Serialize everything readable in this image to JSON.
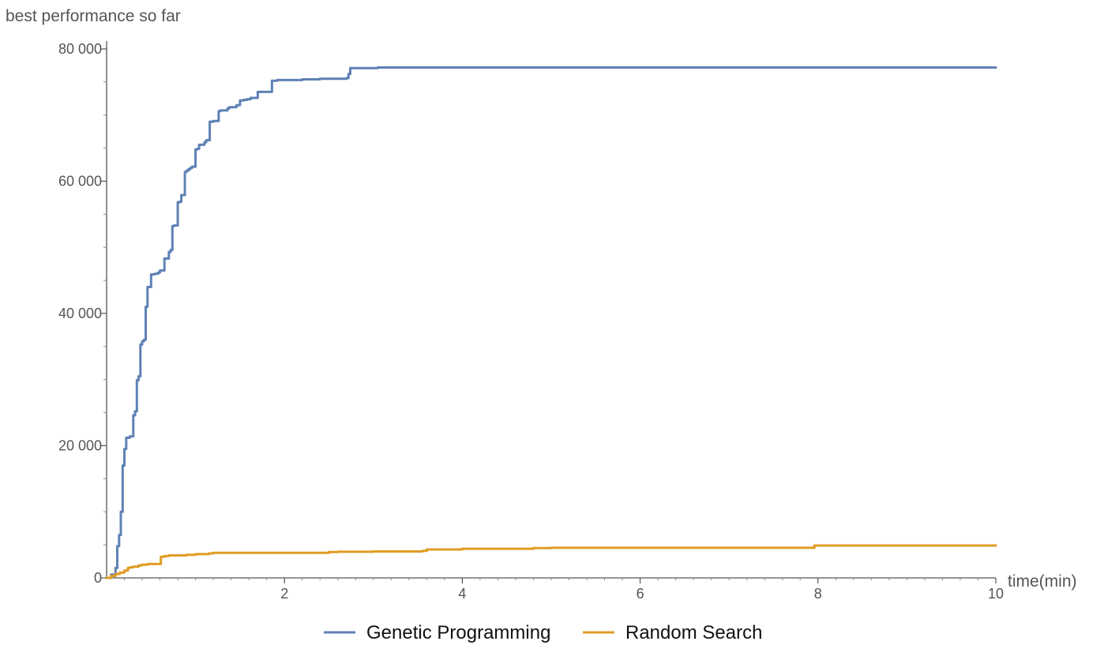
{
  "chart_data": {
    "type": "line",
    "xlabel": "time(min)",
    "ylabel": "best performance so far",
    "xlim": [
      0,
      10
    ],
    "ylim": [
      0,
      80000
    ],
    "x_ticks": [
      2,
      4,
      6,
      8,
      10
    ],
    "x_tick_labels": [
      "2",
      "4",
      "6",
      "8",
      "10"
    ],
    "y_ticks": [
      0,
      20000,
      40000,
      60000,
      80000
    ],
    "y_tick_labels": [
      "0",
      "20 000",
      "40 000",
      "60 000",
      "80 000"
    ],
    "grid": false,
    "legend_position": "bottom",
    "series": [
      {
        "name": "Genetic Programming",
        "color": "#5e81b5",
        "x": [
          0,
          0.05,
          0.1,
          0.12,
          0.14,
          0.16,
          0.18,
          0.2,
          0.22,
          0.24,
          0.26,
          0.3,
          0.32,
          0.34,
          0.36,
          0.38,
          0.4,
          0.42,
          0.44,
          0.46,
          0.5,
          0.52,
          0.54,
          0.56,
          0.58,
          0.6,
          0.65,
          0.7,
          0.72,
          0.74,
          0.76,
          0.8,
          0.82,
          0.84,
          0.88,
          0.9,
          0.92,
          0.94,
          0.96,
          1.0,
          1.02,
          1.04,
          1.1,
          1.12,
          1.16,
          1.2,
          1.26,
          1.28,
          1.36,
          1.38,
          1.46,
          1.5,
          1.52,
          1.54,
          1.56,
          1.58,
          1.62,
          1.7,
          1.74,
          1.76,
          1.86,
          1.9,
          1.92,
          2.2,
          2.4,
          2.7,
          2.72,
          2.74,
          3.05,
          3.35,
          5.0,
          6.6,
          8.3,
          10.0
        ],
        "y": [
          0,
          500,
          1500,
          4800,
          6500,
          10000,
          17000,
          19500,
          21200,
          21200,
          21400,
          24600,
          25200,
          29900,
          30500,
          35300,
          35800,
          36000,
          41000,
          44000,
          45900,
          45900,
          46000,
          46000,
          46200,
          46500,
          48300,
          49300,
          49600,
          53200,
          53300,
          56800,
          56900,
          57900,
          61400,
          61600,
          61800,
          62000,
          62200,
          64800,
          64900,
          65500,
          65900,
          66200,
          69000,
          69100,
          70600,
          70700,
          71000,
          71200,
          71500,
          72200,
          72200,
          72300,
          72300,
          72400,
          72600,
          73500,
          73500,
          73500,
          75200,
          75200,
          75300,
          75400,
          75500,
          75600,
          76200,
          77100,
          77200,
          77200,
          77200,
          77200,
          77200,
          77200
        ]
      },
      {
        "name": "Random Search",
        "color": "#e19c24",
        "x": [
          0,
          0.05,
          0.1,
          0.15,
          0.2,
          0.24,
          0.26,
          0.3,
          0.36,
          0.4,
          0.46,
          0.5,
          0.56,
          0.6,
          0.61,
          0.65,
          0.7,
          0.8,
          0.9,
          1.0,
          1.05,
          1.15,
          1.2,
          1.5,
          2.0,
          2.5,
          2.6,
          3.0,
          3.55,
          3.6,
          4.0,
          4.8,
          5.0,
          6.0,
          7.0,
          7.94,
          7.96,
          8.5,
          10.0
        ],
        "y": [
          0,
          300,
          600,
          800,
          1100,
          1500,
          1600,
          1700,
          1900,
          2000,
          2100,
          2100,
          2100,
          2100,
          3200,
          3300,
          3400,
          3400,
          3500,
          3600,
          3600,
          3700,
          3800,
          3800,
          3800,
          3900,
          3950,
          4000,
          4100,
          4300,
          4400,
          4500,
          4550,
          4550,
          4550,
          4550,
          4900,
          4900,
          4900
        ]
      }
    ]
  }
}
